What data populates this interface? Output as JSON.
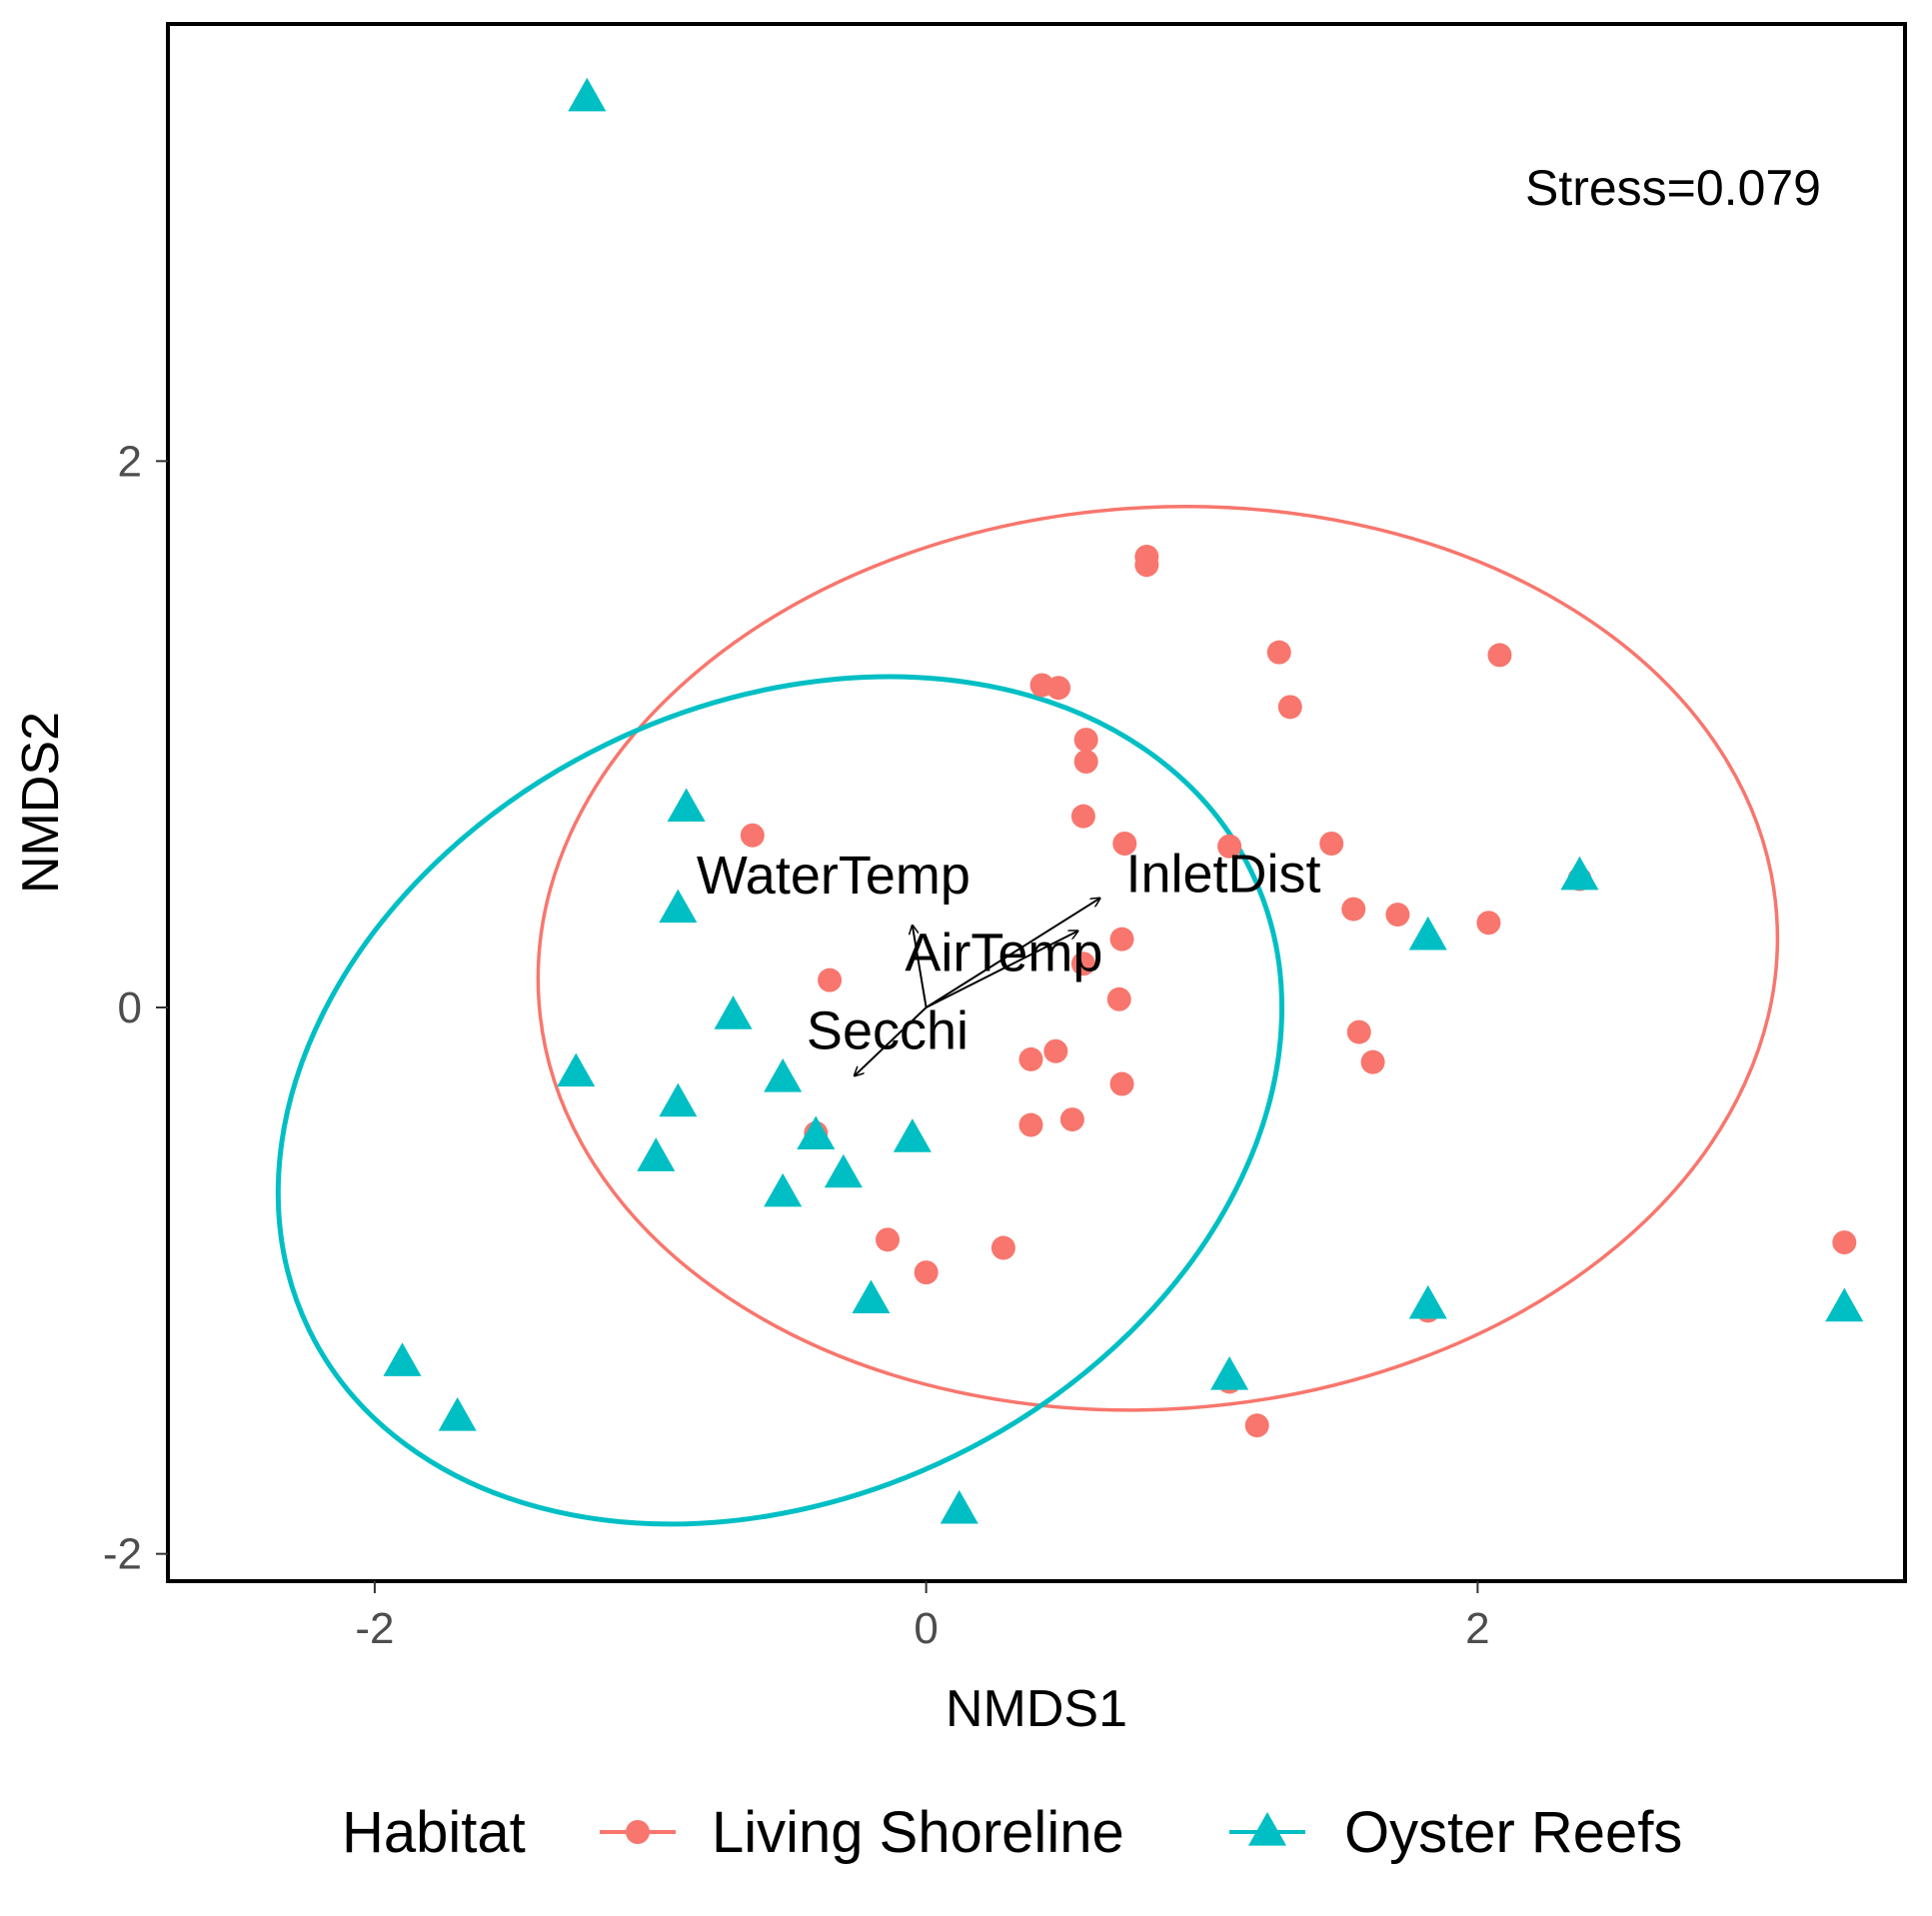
{
  "chart_data": {
    "type": "scatter",
    "title": "",
    "xlabel": "NMDS1",
    "ylabel": "NMDS2",
    "xlim": [
      -2.75,
      3.55
    ],
    "ylim": [
      -2.1,
      3.6
    ],
    "xticks": [
      -2,
      0,
      2
    ],
    "yticks": [
      -2,
      0,
      2
    ],
    "xtick_labels": [
      "-2",
      "0",
      "2"
    ],
    "ytick_labels": [
      "-2",
      "0",
      "2"
    ],
    "grid": false,
    "annotation": "Stress=0.079",
    "legend": {
      "title": "Habitat",
      "position": "bottom",
      "entries": [
        "Living Shoreline",
        "Oyster Reefs"
      ]
    },
    "series": [
      {
        "name": "Living Shoreline",
        "marker": "circle",
        "color": "#F8766D",
        "points": [
          [
            0.8,
            1.65
          ],
          [
            0.8,
            1.62
          ],
          [
            0.42,
            1.18
          ],
          [
            0.48,
            1.17
          ],
          [
            0.58,
            0.98
          ],
          [
            0.58,
            0.9
          ],
          [
            0.57,
            0.7
          ],
          [
            0.72,
            0.6
          ],
          [
            1.1,
            0.59
          ],
          [
            1.47,
            0.6
          ],
          [
            1.28,
            1.3
          ],
          [
            1.32,
            1.1
          ],
          [
            2.08,
            1.29
          ],
          [
            -0.63,
            0.63
          ],
          [
            1.55,
            0.36
          ],
          [
            1.71,
            0.34
          ],
          [
            2.04,
            0.31
          ],
          [
            2.37,
            0.47
          ],
          [
            0.71,
            0.25
          ],
          [
            0.57,
            0.16
          ],
          [
            0.7,
            0.03
          ],
          [
            -0.35,
            0.1
          ],
          [
            0.38,
            -0.19
          ],
          [
            0.47,
            -0.16
          ],
          [
            0.71,
            -0.28
          ],
          [
            1.57,
            -0.09
          ],
          [
            1.62,
            -0.2
          ],
          [
            -0.4,
            -0.46
          ],
          [
            0.38,
            -0.43
          ],
          [
            0.53,
            -0.41
          ],
          [
            -0.14,
            -0.85
          ],
          [
            0.0,
            -0.97
          ],
          [
            0.28,
            -0.88
          ],
          [
            1.82,
            -1.11
          ],
          [
            1.1,
            -1.37
          ],
          [
            1.2,
            -1.53
          ],
          [
            3.33,
            -0.86
          ]
        ]
      },
      {
        "name": "Oyster Reefs",
        "marker": "triangle",
        "color": "#00BFC4",
        "points": [
          [
            -1.23,
            3.33
          ],
          [
            -0.87,
            0.73
          ],
          [
            -0.9,
            0.36
          ],
          [
            -0.7,
            -0.03
          ],
          [
            -1.27,
            -0.24
          ],
          [
            -0.52,
            -0.26
          ],
          [
            -0.9,
            -0.35
          ],
          [
            -0.98,
            -0.55
          ],
          [
            -0.4,
            -0.47
          ],
          [
            -0.05,
            -0.48
          ],
          [
            -0.3,
            -0.61
          ],
          [
            -0.52,
            -0.68
          ],
          [
            -0.2,
            -1.07
          ],
          [
            1.82,
            0.26
          ],
          [
            2.37,
            0.48
          ],
          [
            1.82,
            -1.09
          ],
          [
            1.1,
            -1.35
          ],
          [
            3.33,
            -1.1
          ],
          [
            -1.9,
            -1.3
          ],
          [
            -1.7,
            -1.5
          ],
          [
            0.12,
            -1.84
          ]
        ]
      }
    ],
    "ellipses": [
      {
        "group": "Living Shoreline",
        "color": "#F8766D",
        "center": [
          0.84,
          0.18
        ],
        "radii": [
          2.25,
          1.65
        ],
        "angle_deg": -4
      },
      {
        "group": "Oyster Reefs",
        "color": "#00BFC4",
        "center": [
          -0.53,
          -0.34
        ],
        "radii": [
          1.9,
          1.45
        ],
        "angle_deg": -26
      }
    ],
    "vectors": [
      {
        "label": "WaterTemp",
        "tip": [
          -0.05,
          0.3
        ]
      },
      {
        "label": "AirTemp",
        "tip": [
          0.55,
          0.28
        ]
      },
      {
        "label": "InletDist",
        "tip": [
          0.63,
          0.4
        ]
      },
      {
        "label": "Secchi",
        "tip": [
          -0.26,
          -0.25
        ]
      }
    ],
    "vector_origin": [
      0.0,
      0.0
    ]
  }
}
